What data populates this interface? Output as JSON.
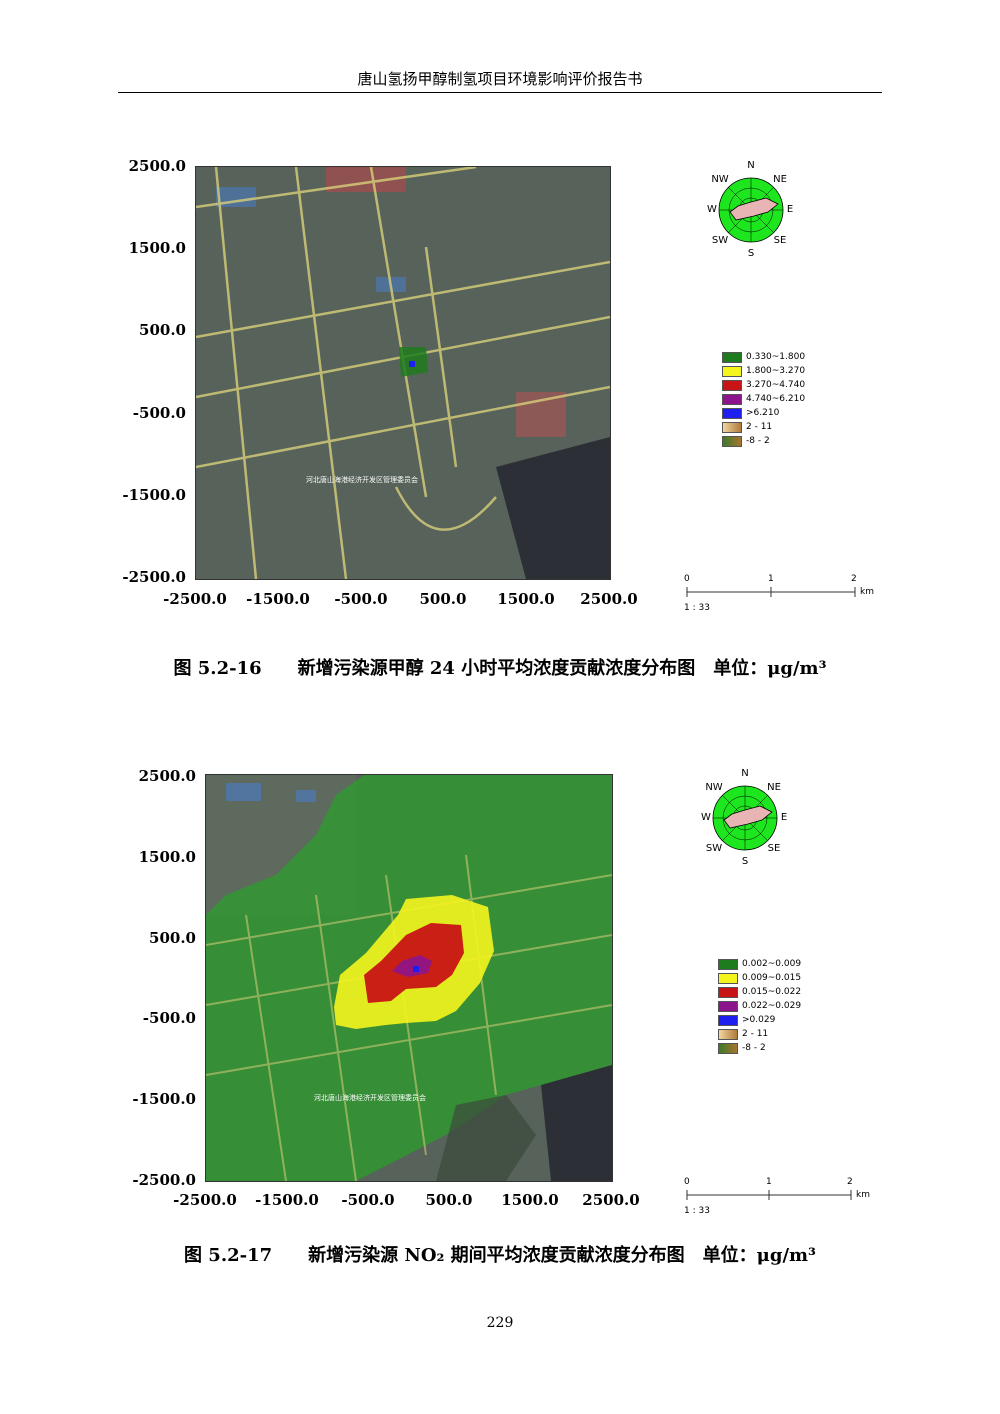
{
  "header": {
    "title": "唐山氢扬甲醇制氢项目环境影响评价报告书"
  },
  "figures": [
    {
      "caption": "图 5.2-16　　新增污染源甲醇 24 小时平均浓度贡献浓度分布图　单位：μg/m³",
      "y_ticks": [
        "2500.0",
        "1500.0",
        "500.0",
        "-500.0",
        "-1500.0",
        "-2500.0"
      ],
      "x_ticks": [
        "-2500.0",
        "-1500.0",
        "-500.0",
        "500.0",
        "1500.0",
        "2500.0"
      ],
      "compass": [
        "N",
        "NE",
        "E",
        "SE",
        "S",
        "SW",
        "W",
        "NW"
      ],
      "legend": [
        {
          "label": "0.330~1.800",
          "color": "#1e7b1e"
        },
        {
          "label": "1.800~3.270",
          "color": "#f5f51e"
        },
        {
          "label": "3.270~4.740",
          "color": "#c81414"
        },
        {
          "label": "4.740~6.210",
          "color": "#8c148c"
        },
        {
          "label": ">6.210",
          "color": "#1e1ef0"
        },
        {
          "label": "2 - 11",
          "color": "#d9a866"
        },
        {
          "label": "-8 - 2",
          "color": "#6b7a2e"
        }
      ],
      "scale": {
        "ticks": [
          "0",
          "1",
          "2"
        ],
        "unit": "km",
        "ratio": "1 : 33"
      },
      "map_labels": [
        "河北唐山海港经济开发区管理委员会"
      ]
    },
    {
      "caption": "图 5.2-17　　新增污染源 NO₂ 期间平均浓度贡献浓度分布图　单位：μg/m³",
      "y_ticks": [
        "2500.0",
        "1500.0",
        "500.0",
        "-500.0",
        "-1500.0",
        "-2500.0"
      ],
      "x_ticks": [
        "-2500.0",
        "-1500.0",
        "-500.0",
        "500.0",
        "1500.0",
        "2500.0"
      ],
      "compass": [
        "N",
        "NE",
        "E",
        "SE",
        "S",
        "SW",
        "W",
        "NW"
      ],
      "legend": [
        {
          "label": "0.002~0.009",
          "color": "#1e7b1e"
        },
        {
          "label": "0.009~0.015",
          "color": "#f5f51e"
        },
        {
          "label": "0.015~0.022",
          "color": "#c81414"
        },
        {
          "label": "0.022~0.029",
          "color": "#8c148c"
        },
        {
          "label": ">0.029",
          "color": "#1e1ef0"
        },
        {
          "label": "2 - 11",
          "color": "#d9a866"
        },
        {
          "label": "-8 - 2",
          "color": "#6b7a2e"
        }
      ],
      "scale": {
        "ticks": [
          "0",
          "1",
          "2"
        ],
        "unit": "km",
        "ratio": "1 : 33"
      },
      "map_labels": [
        "河北唐山海港经济开发区管理委员会"
      ]
    }
  ],
  "page_number": "229"
}
